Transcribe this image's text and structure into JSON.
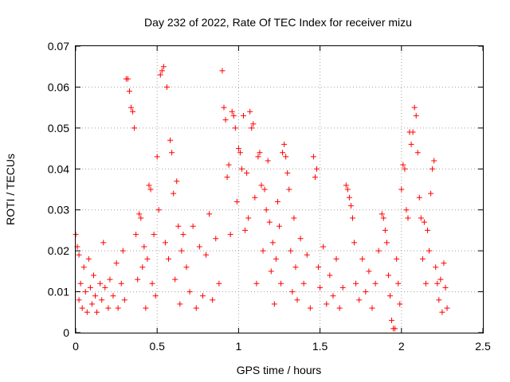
{
  "chart_data": {
    "type": "scatter",
    "title": "Day 232 of 2022, Rate Of TEC Index for receiver mizu",
    "xlabel": "GPS time / hours",
    "ylabel": "ROTI / TECUs",
    "xlim": [
      0,
      2.5
    ],
    "ylim": [
      0,
      0.07
    ],
    "x_ticks": [
      "0",
      "0.5",
      "1",
      "1.5",
      "2",
      "2.5"
    ],
    "y_ticks": [
      "0",
      "0.01",
      "0.02",
      "0.03",
      "0.04",
      "0.05",
      "0.06",
      "0.07"
    ],
    "grid": true,
    "marker": "+",
    "color": "#ff0000",
    "series": [
      {
        "points": [
          [
            0.0,
            0.024
          ],
          [
            0.01,
            0.021
          ],
          [
            0.02,
            0.019
          ],
          [
            0.02,
            0.008
          ],
          [
            0.03,
            0.012
          ],
          [
            0.04,
            0.006
          ],
          [
            0.05,
            0.016
          ],
          [
            0.06,
            0.01
          ],
          [
            0.07,
            0.005
          ],
          [
            0.08,
            0.018
          ],
          [
            0.09,
            0.011
          ],
          [
            0.1,
            0.007
          ],
          [
            0.11,
            0.014
          ],
          [
            0.12,
            0.009
          ],
          [
            0.13,
            0.005
          ],
          [
            0.15,
            0.012
          ],
          [
            0.16,
            0.008
          ],
          [
            0.17,
            0.022
          ],
          [
            0.18,
            0.011
          ],
          [
            0.2,
            0.006
          ],
          [
            0.21,
            0.013
          ],
          [
            0.23,
            0.009
          ],
          [
            0.25,
            0.017
          ],
          [
            0.26,
            0.006
          ],
          [
            0.28,
            0.012
          ],
          [
            0.29,
            0.02
          ],
          [
            0.3,
            0.008
          ],
          [
            0.31,
            0.062
          ],
          [
            0.32,
            0.062
          ],
          [
            0.33,
            0.059
          ],
          [
            0.34,
            0.055
          ],
          [
            0.35,
            0.054
          ],
          [
            0.36,
            0.05
          ],
          [
            0.37,
            0.024
          ],
          [
            0.38,
            0.013
          ],
          [
            0.39,
            0.029
          ],
          [
            0.4,
            0.028
          ],
          [
            0.41,
            0.016
          ],
          [
            0.42,
            0.021
          ],
          [
            0.43,
            0.006
          ],
          [
            0.44,
            0.018
          ],
          [
            0.45,
            0.036
          ],
          [
            0.46,
            0.035
          ],
          [
            0.47,
            0.012
          ],
          [
            0.48,
            0.024
          ],
          [
            0.49,
            0.009
          ],
          [
            0.5,
            0.043
          ],
          [
            0.51,
            0.03
          ],
          [
            0.52,
            0.063
          ],
          [
            0.53,
            0.064
          ],
          [
            0.54,
            0.065
          ],
          [
            0.55,
            0.022
          ],
          [
            0.56,
            0.06
          ],
          [
            0.57,
            0.018
          ],
          [
            0.58,
            0.047
          ],
          [
            0.59,
            0.044
          ],
          [
            0.6,
            0.034
          ],
          [
            0.61,
            0.013
          ],
          [
            0.62,
            0.037
          ],
          [
            0.63,
            0.026
          ],
          [
            0.64,
            0.007
          ],
          [
            0.65,
            0.02
          ],
          [
            0.66,
            0.024
          ],
          [
            0.68,
            0.016
          ],
          [
            0.7,
            0.01
          ],
          [
            0.72,
            0.026
          ],
          [
            0.74,
            0.006
          ],
          [
            0.76,
            0.021
          ],
          [
            0.78,
            0.009
          ],
          [
            0.8,
            0.019
          ],
          [
            0.82,
            0.029
          ],
          [
            0.84,
            0.008
          ],
          [
            0.86,
            0.023
          ],
          [
            0.88,
            0.012
          ],
          [
            0.9,
            0.064
          ],
          [
            0.91,
            0.055
          ],
          [
            0.92,
            0.052
          ],
          [
            0.93,
            0.038
          ],
          [
            0.94,
            0.041
          ],
          [
            0.95,
            0.024
          ],
          [
            0.96,
            0.054
          ],
          [
            0.97,
            0.053
          ],
          [
            0.98,
            0.05
          ],
          [
            0.99,
            0.032
          ],
          [
            1.0,
            0.045
          ],
          [
            1.01,
            0.044
          ],
          [
            1.02,
            0.04
          ],
          [
            1.03,
            0.053
          ],
          [
            1.04,
            0.025
          ],
          [
            1.05,
            0.039
          ],
          [
            1.06,
            0.028
          ],
          [
            1.07,
            0.054
          ],
          [
            1.08,
            0.05
          ],
          [
            1.09,
            0.051
          ],
          [
            1.1,
            0.033
          ],
          [
            1.11,
            0.012
          ],
          [
            1.12,
            0.043
          ],
          [
            1.13,
            0.044
          ],
          [
            1.14,
            0.036
          ],
          [
            1.15,
            0.02
          ],
          [
            1.16,
            0.035
          ],
          [
            1.17,
            0.03
          ],
          [
            1.18,
            0.042
          ],
          [
            1.19,
            0.027
          ],
          [
            1.2,
            0.015
          ],
          [
            1.21,
            0.022
          ],
          [
            1.22,
            0.007
          ],
          [
            1.23,
            0.018
          ],
          [
            1.24,
            0.032
          ],
          [
            1.25,
            0.026
          ],
          [
            1.26,
            0.012
          ],
          [
            1.27,
            0.044
          ],
          [
            1.28,
            0.046
          ],
          [
            1.29,
            0.043
          ],
          [
            1.3,
            0.039
          ],
          [
            1.31,
            0.035
          ],
          [
            1.32,
            0.02
          ],
          [
            1.33,
            0.01
          ],
          [
            1.34,
            0.028
          ],
          [
            1.35,
            0.016
          ],
          [
            1.36,
            0.008
          ],
          [
            1.38,
            0.023
          ],
          [
            1.4,
            0.012
          ],
          [
            1.42,
            0.019
          ],
          [
            1.44,
            0.006
          ],
          [
            1.46,
            0.043
          ],
          [
            1.47,
            0.038
          ],
          [
            1.48,
            0.04
          ],
          [
            1.49,
            0.016
          ],
          [
            1.5,
            0.011
          ],
          [
            1.52,
            0.021
          ],
          [
            1.54,
            0.007
          ],
          [
            1.56,
            0.014
          ],
          [
            1.58,
            0.009
          ],
          [
            1.6,
            0.018
          ],
          [
            1.62,
            0.006
          ],
          [
            1.64,
            0.011
          ],
          [
            1.66,
            0.036
          ],
          [
            1.67,
            0.035
          ],
          [
            1.68,
            0.033
          ],
          [
            1.69,
            0.031
          ],
          [
            1.7,
            0.028
          ],
          [
            1.71,
            0.022
          ],
          [
            1.72,
            0.012
          ],
          [
            1.74,
            0.008
          ],
          [
            1.76,
            0.018
          ],
          [
            1.78,
            0.01
          ],
          [
            1.8,
            0.015
          ],
          [
            1.82,
            0.006
          ],
          [
            1.84,
            0.012
          ],
          [
            1.86,
            0.02
          ],
          [
            1.88,
            0.029
          ],
          [
            1.89,
            0.028
          ],
          [
            1.9,
            0.025
          ],
          [
            1.91,
            0.022
          ],
          [
            1.92,
            0.014
          ],
          [
            1.93,
            0.009
          ],
          [
            1.94,
            0.003
          ],
          [
            1.95,
            0.001
          ],
          [
            1.96,
            0.001
          ],
          [
            1.97,
            0.018
          ],
          [
            1.98,
            0.012
          ],
          [
            1.99,
            0.007
          ],
          [
            2.0,
            0.035
          ],
          [
            2.01,
            0.041
          ],
          [
            2.02,
            0.04
          ],
          [
            2.03,
            0.03
          ],
          [
            2.04,
            0.028
          ],
          [
            2.05,
            0.049
          ],
          [
            2.06,
            0.046
          ],
          [
            2.07,
            0.049
          ],
          [
            2.08,
            0.055
          ],
          [
            2.09,
            0.053
          ],
          [
            2.1,
            0.044
          ],
          [
            2.11,
            0.033
          ],
          [
            2.12,
            0.028
          ],
          [
            2.13,
            0.018
          ],
          [
            2.14,
            0.027
          ],
          [
            2.15,
            0.012
          ],
          [
            2.16,
            0.025
          ],
          [
            2.17,
            0.02
          ],
          [
            2.18,
            0.034
          ],
          [
            2.19,
            0.04
          ],
          [
            2.2,
            0.042
          ],
          [
            2.21,
            0.016
          ],
          [
            2.22,
            0.012
          ],
          [
            2.23,
            0.008
          ],
          [
            2.24,
            0.013
          ],
          [
            2.25,
            0.005
          ],
          [
            2.26,
            0.017
          ],
          [
            2.27,
            0.011
          ],
          [
            2.28,
            0.006
          ]
        ]
      }
    ]
  }
}
